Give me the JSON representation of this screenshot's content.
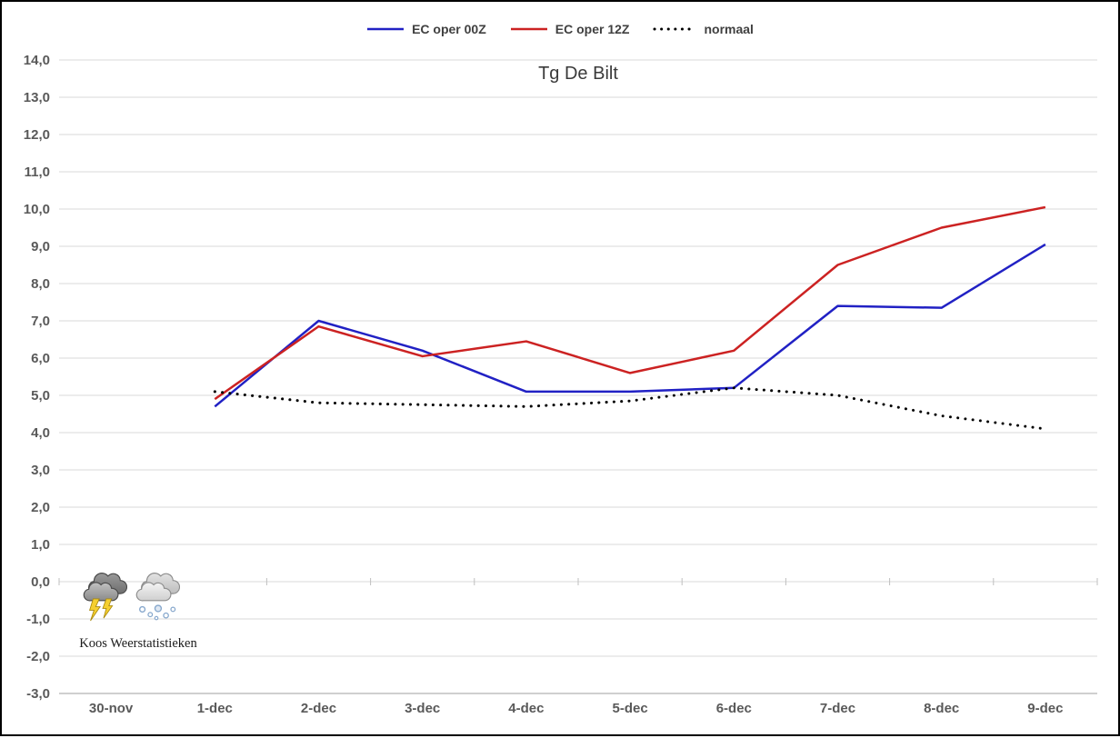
{
  "title": "Tg De Bilt",
  "credit": "Koos Weerstatistieken",
  "colors": {
    "background": "#FFFFFF",
    "border": "#000000",
    "grid": "#D9D9D9",
    "axis": "#BFBFBF",
    "axis_label": "#595959",
    "title": "#3A3A3A",
    "legend_text": "#404040"
  },
  "chart_data": {
    "type": "line",
    "title": "Tg De Bilt",
    "grid": true,
    "legend_position": "top",
    "ylim": [
      -3.0,
      14.0
    ],
    "y_tick_labels": [
      "14,0",
      "13,0",
      "12,0",
      "11,0",
      "10,0",
      "9,0",
      "8,0",
      "7,0",
      "6,0",
      "5,0",
      "4,0",
      "3,0",
      "2,0",
      "1,0",
      "0,0",
      "-1,0",
      "-2,0",
      "-3,0"
    ],
    "categories": [
      "30-nov",
      "1-dec",
      "2-dec",
      "3-dec",
      "4-dec",
      "5-dec",
      "6-dec",
      "7-dec",
      "8-dec",
      "9-dec"
    ],
    "series": [
      {
        "name": "EC oper 00Z",
        "color": "#2121C4",
        "style": "solid",
        "values": [
          null,
          4.7,
          7.0,
          6.2,
          5.1,
          5.1,
          5.2,
          7.4,
          7.35,
          9.05
        ]
      },
      {
        "name": "EC oper 12Z",
        "color": "#CC2222",
        "style": "solid",
        "values": [
          null,
          4.9,
          6.85,
          6.05,
          6.45,
          5.6,
          6.2,
          8.5,
          9.5,
          10.05
        ]
      },
      {
        "name": "normaal",
        "color": "#000000",
        "style": "dotted",
        "values": [
          null,
          5.1,
          4.8,
          4.75,
          4.7,
          4.85,
          5.2,
          5.0,
          4.45,
          4.1
        ]
      }
    ]
  }
}
